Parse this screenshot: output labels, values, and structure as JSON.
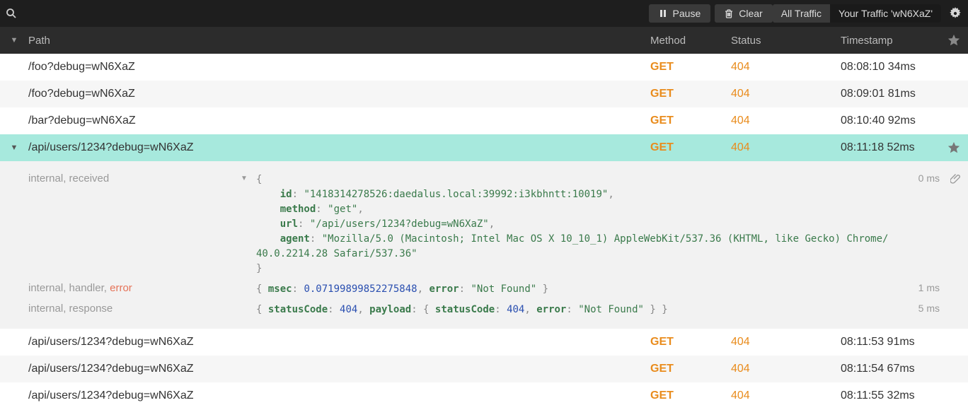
{
  "colors": {
    "toolbar_bg": "#1e1e1e",
    "header_bg": "#2c2c2c",
    "row_selected": "#a7e9dd",
    "row_even": "#ffffff",
    "row_odd": "#f6f6f6",
    "accent_orange": "#e98c1d",
    "error_red": "#e57358",
    "detail_bg": "#f2f2f2",
    "code_key": "#3a7a4b",
    "code_str": "#3a7a4b",
    "code_num": "#2a4fb0",
    "muted": "#999999"
  },
  "toolbar": {
    "search_placeholder": "",
    "pause_label": "Pause",
    "clear_label": "Clear",
    "all_traffic_label": "All Traffic",
    "your_traffic_label": "Your Traffic 'wN6XaZ'"
  },
  "columns": {
    "path": "Path",
    "method": "Method",
    "status": "Status",
    "timestamp": "Timestamp"
  },
  "rows": [
    {
      "path": "/foo?debug=wN6XaZ",
      "method": "GET",
      "status": "404",
      "timestamp": "08:08:10 34ms",
      "selected": false,
      "starred": false,
      "expandable": false
    },
    {
      "path": "/foo?debug=wN6XaZ",
      "method": "GET",
      "status": "404",
      "timestamp": "08:09:01 81ms",
      "selected": false,
      "starred": false,
      "expandable": false
    },
    {
      "path": "/bar?debug=wN6XaZ",
      "method": "GET",
      "status": "404",
      "timestamp": "08:10:40 92ms",
      "selected": false,
      "starred": false,
      "expandable": false
    },
    {
      "path": "/api/users/1234?debug=wN6XaZ",
      "method": "GET",
      "status": "404",
      "timestamp": "08:11:18 52ms",
      "selected": true,
      "starred": true,
      "expandable": true
    },
    {
      "path": "/api/users/1234?debug=wN6XaZ",
      "method": "GET",
      "status": "404",
      "timestamp": "08:11:53 91ms",
      "selected": false,
      "starred": false,
      "expandable": false
    },
    {
      "path": "/api/users/1234?debug=wN6XaZ",
      "method": "GET",
      "status": "404",
      "timestamp": "08:11:54 67ms",
      "selected": false,
      "starred": false,
      "expandable": false
    },
    {
      "path": "/api/users/1234?debug=wN6XaZ",
      "method": "GET",
      "status": "404",
      "timestamp": "08:11:55 32ms",
      "selected": false,
      "starred": false,
      "expandable": false
    }
  ],
  "details": {
    "lines": [
      {
        "tag_parts": [
          "internal",
          "received"
        ],
        "has_error": false,
        "timing": "0 ms",
        "has_attachment": true,
        "expandable": true,
        "code_tokens": [
          {
            "t": "punc",
            "v": "{"
          },
          {
            "t": "br"
          },
          {
            "t": "indent",
            "v": 2
          },
          {
            "t": "key",
            "v": "id"
          },
          {
            "t": "punc",
            "v": ": "
          },
          {
            "t": "str",
            "v": "\"1418314278526:daedalus.local:39992:i3kbhntt:10019\""
          },
          {
            "t": "punc",
            "v": ","
          },
          {
            "t": "br"
          },
          {
            "t": "indent",
            "v": 2
          },
          {
            "t": "key",
            "v": "method"
          },
          {
            "t": "punc",
            "v": ": "
          },
          {
            "t": "str",
            "v": "\"get\""
          },
          {
            "t": "punc",
            "v": ","
          },
          {
            "t": "br"
          },
          {
            "t": "indent",
            "v": 2
          },
          {
            "t": "key",
            "v": "url"
          },
          {
            "t": "punc",
            "v": ": "
          },
          {
            "t": "str",
            "v": "\"/api/users/1234?debug=wN6XaZ\""
          },
          {
            "t": "punc",
            "v": ","
          },
          {
            "t": "br"
          },
          {
            "t": "indent",
            "v": 2
          },
          {
            "t": "key",
            "v": "agent"
          },
          {
            "t": "punc",
            "v": ": "
          },
          {
            "t": "str",
            "v": "\"Mozilla/5.0 (Macintosh; Intel Mac OS X 10_10_1) AppleWebKit/537.36 (KHTML, like Gecko) Chrome/40.0.2214.28 Safari/537.36\""
          },
          {
            "t": "br"
          },
          {
            "t": "punc",
            "v": "}"
          }
        ]
      },
      {
        "tag_parts": [
          "internal",
          "handler",
          "error"
        ],
        "has_error": true,
        "timing": "1 ms",
        "has_attachment": false,
        "expandable": false,
        "code_tokens": [
          {
            "t": "punc",
            "v": "{ "
          },
          {
            "t": "key",
            "v": "msec"
          },
          {
            "t": "punc",
            "v": ": "
          },
          {
            "t": "num",
            "v": "0.07199899852275848"
          },
          {
            "t": "punc",
            "v": ", "
          },
          {
            "t": "key",
            "v": "error"
          },
          {
            "t": "punc",
            "v": ": "
          },
          {
            "t": "str",
            "v": "\"Not Found\""
          },
          {
            "t": "punc",
            "v": " }"
          }
        ]
      },
      {
        "tag_parts": [
          "internal",
          "response"
        ],
        "has_error": false,
        "timing": "5 ms",
        "has_attachment": false,
        "expandable": false,
        "code_tokens": [
          {
            "t": "punc",
            "v": "{ "
          },
          {
            "t": "key",
            "v": "statusCode"
          },
          {
            "t": "punc",
            "v": ": "
          },
          {
            "t": "num",
            "v": "404"
          },
          {
            "t": "punc",
            "v": ", "
          },
          {
            "t": "key",
            "v": "payload"
          },
          {
            "t": "punc",
            "v": ": { "
          },
          {
            "t": "key",
            "v": "statusCode"
          },
          {
            "t": "punc",
            "v": ": "
          },
          {
            "t": "num",
            "v": "404"
          },
          {
            "t": "punc",
            "v": ", "
          },
          {
            "t": "key",
            "v": "error"
          },
          {
            "t": "punc",
            "v": ": "
          },
          {
            "t": "str",
            "v": "\"Not Found\""
          },
          {
            "t": "punc",
            "v": " } }"
          }
        ]
      }
    ]
  }
}
